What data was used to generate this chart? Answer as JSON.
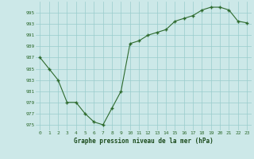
{
  "x": [
    0,
    1,
    2,
    3,
    4,
    5,
    6,
    7,
    8,
    9,
    10,
    11,
    12,
    13,
    14,
    15,
    16,
    17,
    18,
    19,
    20,
    21,
    22,
    23
  ],
  "y": [
    987,
    985,
    983,
    979,
    979,
    977,
    975.5,
    975,
    978,
    981,
    989.5,
    990,
    991,
    991.5,
    992,
    993.5,
    994,
    994.5,
    995.5,
    996,
    996,
    995.5,
    993.5,
    993.2
  ],
  "line_color": "#2d6a2d",
  "marker": "+",
  "background_color": "#cce8e8",
  "grid_color": "#99cccc",
  "xlabel": "Graphe pression niveau de la mer (hPa)",
  "xlabel_color": "#1a4a1a",
  "ylabel_ticks": [
    975,
    977,
    979,
    981,
    983,
    985,
    987,
    989,
    991,
    993,
    995
  ],
  "ylim": [
    974,
    997
  ],
  "xlim": [
    -0.5,
    23.5
  ],
  "tick_color": "#2d6a2d",
  "font_family": "monospace"
}
